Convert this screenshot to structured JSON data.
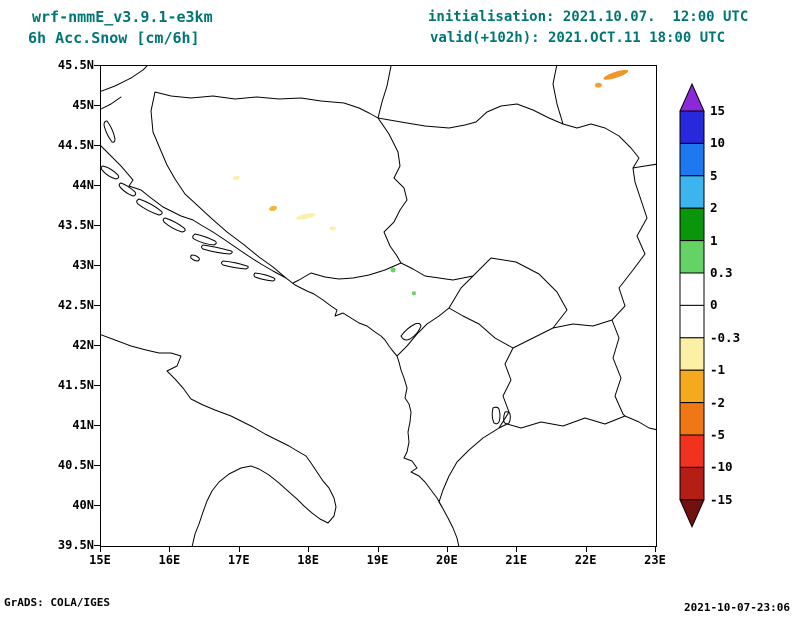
{
  "header": {
    "model": "wrf-nmmE_v3.9.1-e3km",
    "variable": "6h Acc.Snow [cm/6h]",
    "init": "initialisation: 2021.10.07.  12:00 UTC",
    "valid": "valid(+102h): 2021.OCT.11 18:00 UTC"
  },
  "footer": {
    "credit": "GrADS: COLA/IGES",
    "created": "2021-10-07-23:06"
  },
  "style": {
    "title_color": "#007575",
    "map_line_color": "#000000",
    "text_color": "#000000"
  },
  "chart_data": {
    "type": "heatmap",
    "subtype": "filled-contour-forecast-map",
    "title": "6h Acc.Snow [cm/6h]",
    "model": "wrf-nmmE_v3.9.1-e3km",
    "init_time": "2021.10.07. 12:00 UTC",
    "valid_time": "2021.OCT.11 18:00 UTC",
    "forecast_hour": "+102h",
    "units": "cm/6h",
    "region": "Balkans / Adriatic",
    "lon_range": [
      15,
      23
    ],
    "lat_range": [
      39.5,
      45.5
    ],
    "x_ticks": [
      "15E",
      "16E",
      "17E",
      "18E",
      "19E",
      "20E",
      "21E",
      "22E",
      "23E"
    ],
    "y_ticks": [
      "45.5N",
      "45N",
      "44.5N",
      "44N",
      "43.5N",
      "43N",
      "42.5N",
      "42N",
      "41.5N",
      "41N",
      "40.5N",
      "40N",
      "39.5N"
    ],
    "grid": false,
    "colorbar": {
      "position": "right",
      "boundary_labels": [
        "15",
        "10",
        "5",
        "2",
        "1",
        "0.3",
        "0",
        "-0.3",
        "-1",
        "-2",
        "-5",
        "-10",
        "-15"
      ],
      "segments": [
        {
          "range": "> 15",
          "color": "#8c28dc"
        },
        {
          "range": "10 to 15",
          "color": "#2828dc"
        },
        {
          "range": "5 to 10",
          "color": "#1e78f0"
        },
        {
          "range": "2 to 5",
          "color": "#3cb4f0"
        },
        {
          "range": "1 to 2",
          "color": "#0a960a"
        },
        {
          "range": "0.3 to 1",
          "color": "#64d264"
        },
        {
          "range": "0 to 0.3",
          "color": "#ffffff"
        },
        {
          "range": "-0.3 to 0",
          "color": "#ffffff"
        },
        {
          "range": "-1 to -0.3",
          "color": "#fbf0a5"
        },
        {
          "range": "-2 to -1",
          "color": "#f5aa1e"
        },
        {
          "range": "-5 to -2",
          "color": "#f07814"
        },
        {
          "range": "-10 to -5",
          "color": "#f0321e"
        },
        {
          "range": "-15 to -10",
          "color": "#b41e14"
        },
        {
          "range": "< -15",
          "color": "#731010"
        }
      ]
    },
    "points": [
      {
        "lon": 22.42,
        "lat": 45.39,
        "value": -3,
        "color": "#f09628",
        "w": 26,
        "h": 6,
        "rot": -18
      },
      {
        "lon": 22.17,
        "lat": 45.26,
        "value": -2.5,
        "color": "#f0a032",
        "w": 7,
        "h": 5,
        "rot": 0
      },
      {
        "lon": 16.95,
        "lat": 44.1,
        "value": -0.5,
        "color": "#fbf0a5",
        "w": 7,
        "h": 4,
        "rot": -15
      },
      {
        "lon": 17.48,
        "lat": 43.72,
        "value": -1.5,
        "color": "#f5b43c",
        "w": 8,
        "h": 5,
        "rot": -15
      },
      {
        "lon": 17.95,
        "lat": 43.62,
        "value": -0.5,
        "color": "#faf0aa",
        "w": 20,
        "h": 5,
        "rot": -12
      },
      {
        "lon": 18.34,
        "lat": 43.47,
        "value": -0.5,
        "color": "#faf0aa",
        "w": 7,
        "h": 4,
        "rot": 0
      },
      {
        "lon": 19.21,
        "lat": 42.95,
        "value": 0.6,
        "color": "#64d264",
        "w": 5,
        "h": 5,
        "rot": 0
      },
      {
        "lon": 19.51,
        "lat": 42.66,
        "value": 0.6,
        "color": "#64d264",
        "w": 4,
        "h": 4,
        "rot": 0
      }
    ]
  }
}
